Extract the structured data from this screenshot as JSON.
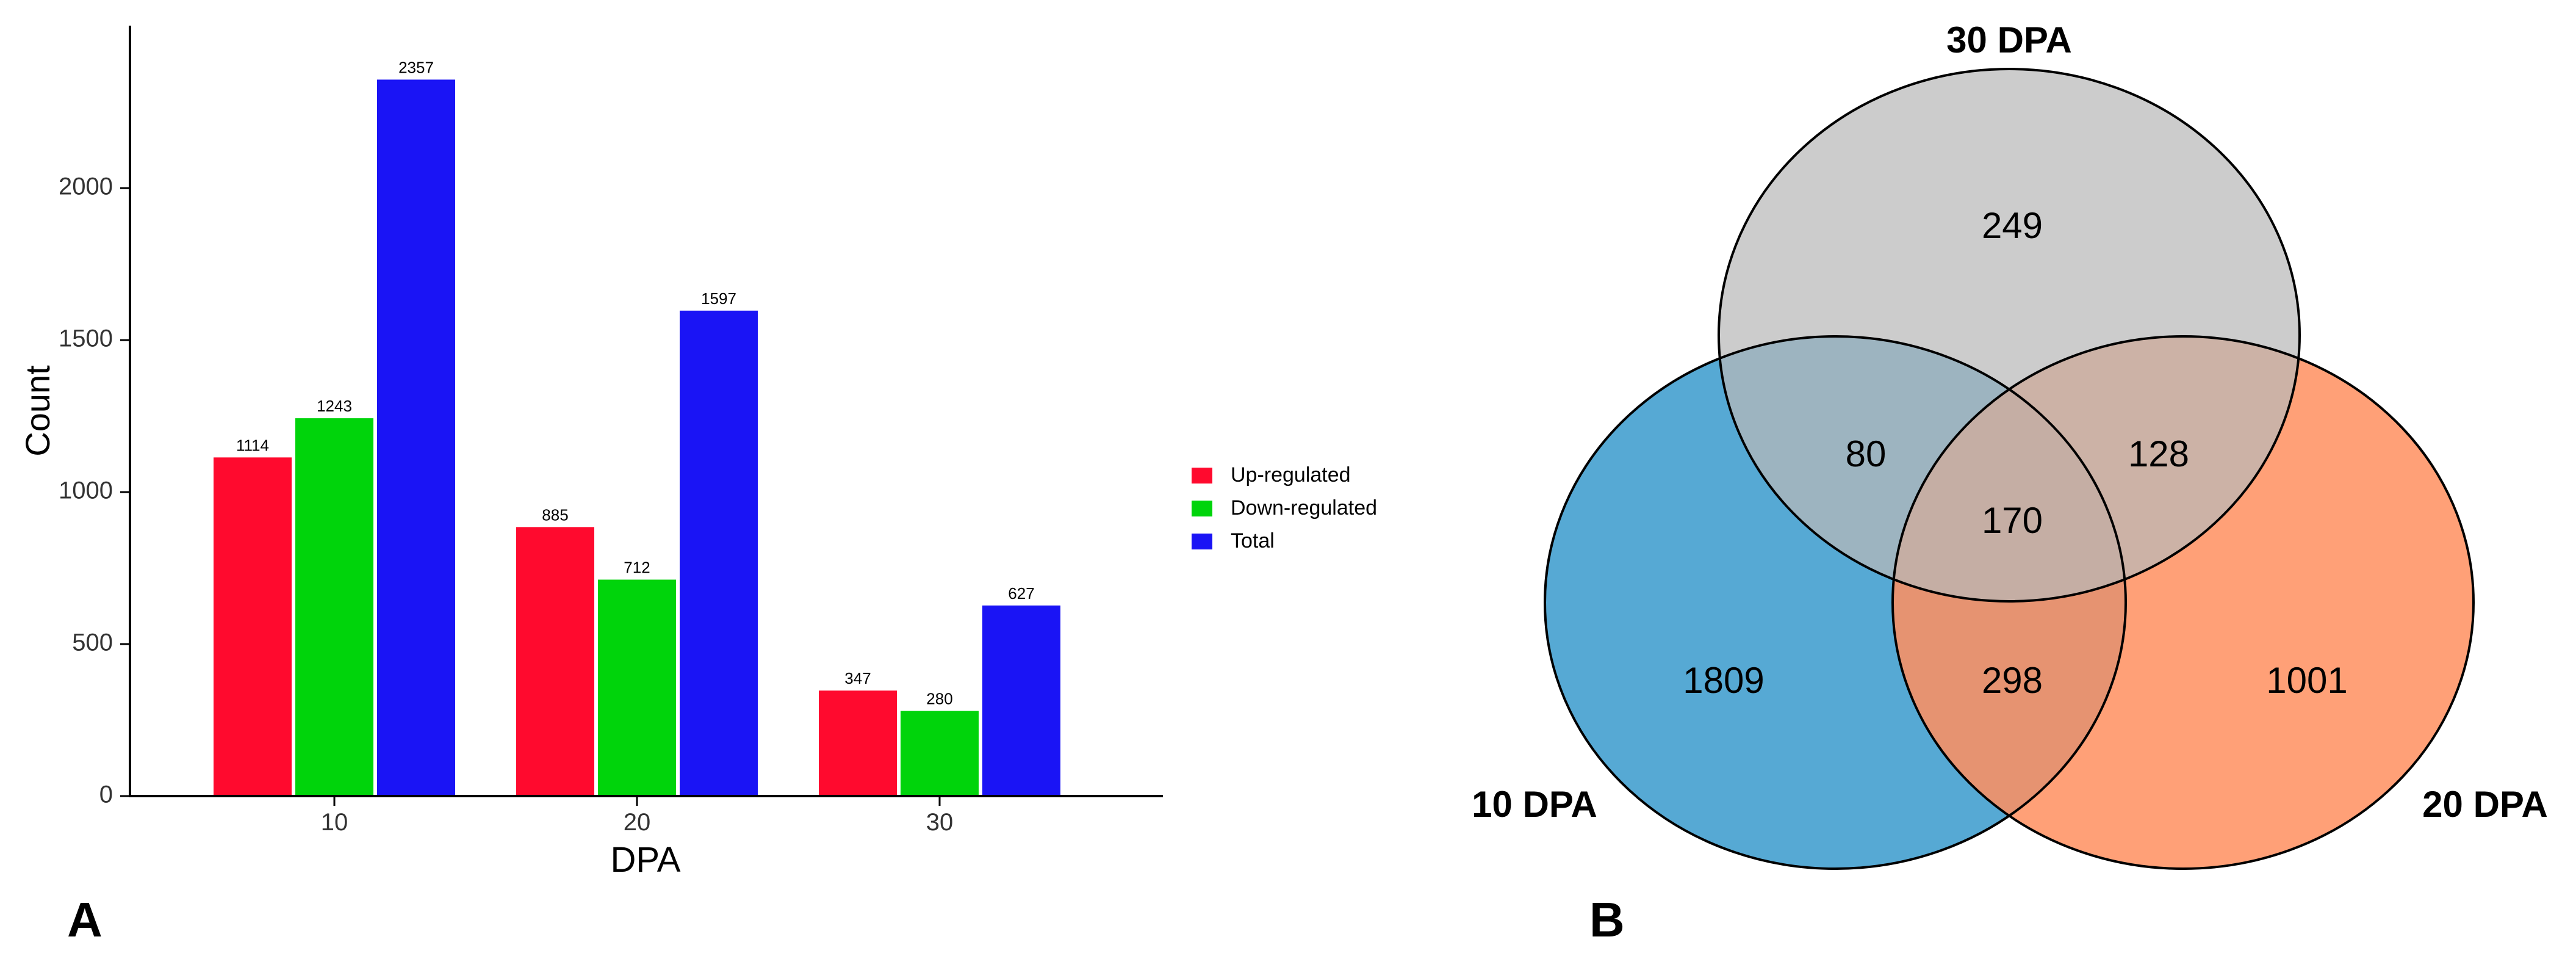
{
  "chart_data": [
    {
      "type": "bar",
      "panel_label": "A",
      "title": "",
      "xlabel": "DPA",
      "ylabel": "Count",
      "categories": [
        "10",
        "20",
        "30"
      ],
      "ylim": [
        0,
        2400
      ],
      "yticks": [
        0,
        500,
        1000,
        1500,
        2000
      ],
      "grid": false,
      "legend_position": "right",
      "series": [
        {
          "name": "Up-regulated",
          "color": "#ff0a2e",
          "values": [
            1114,
            885,
            347
          ]
        },
        {
          "name": "Down-regulated",
          "color": "#00d40b",
          "values": [
            1243,
            712,
            280
          ]
        },
        {
          "name": "Total",
          "color": "#1a14f5",
          "values": [
            2357,
            1597,
            627
          ]
        }
      ]
    },
    {
      "type": "venn",
      "panel_label": "B",
      "sets": [
        {
          "name": "30 DPA",
          "color": "#b8b8b8"
        },
        {
          "name": "10 DPA",
          "color": "#56a9d4"
        },
        {
          "name": "20 DPA",
          "color": "#ff8f5f"
        }
      ],
      "regions": {
        "only_30": 249,
        "only_10": 1809,
        "only_20": 1001,
        "10_and_30": 80,
        "20_and_30": 128,
        "10_and_20": 298,
        "all": 170
      }
    }
  ]
}
